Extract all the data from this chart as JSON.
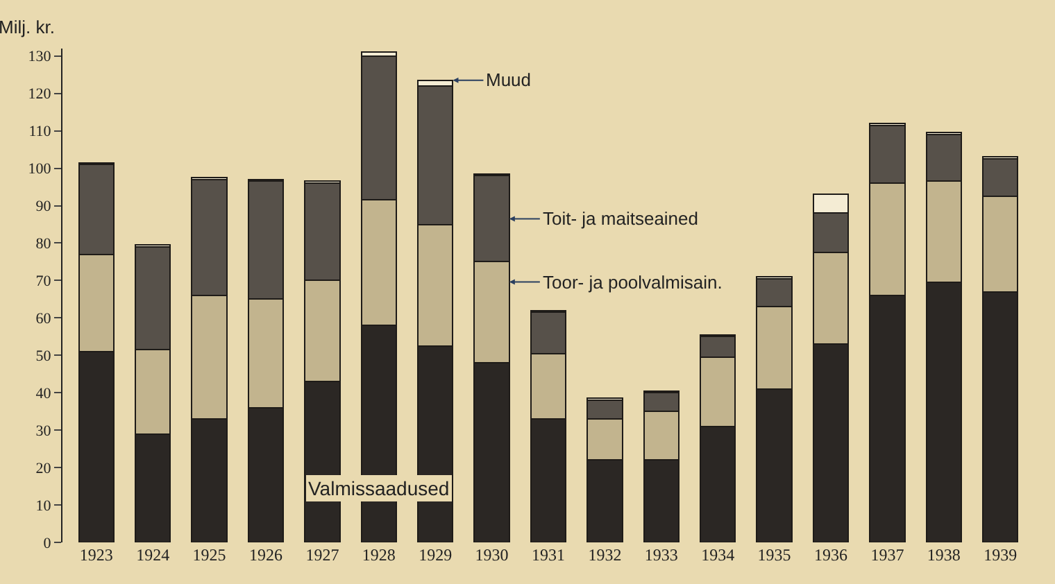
{
  "chart_data": {
    "type": "bar",
    "stacked": true,
    "ylabel": "Milj. kr.",
    "categories": [
      "1923",
      "1924",
      "1925",
      "1926",
      "1927",
      "1928",
      "1929",
      "1930",
      "1931",
      "1932",
      "1933",
      "1934",
      "1935",
      "1936",
      "1937",
      "1938",
      "1939"
    ],
    "series": [
      {
        "name": "Valmissaadused",
        "color": "#2b2724",
        "values": [
          51,
          29,
          33,
          36,
          43,
          58,
          52.5,
          48,
          33,
          22,
          22,
          31,
          41,
          53,
          66,
          69.5,
          67
        ]
      },
      {
        "name": "Toor- ja poolvalmisain.",
        "color": "#c2b48e",
        "values": [
          26,
          22.5,
          33,
          29,
          27,
          33.5,
          32.5,
          27,
          17.5,
          11,
          13,
          18.5,
          22,
          24.5,
          30,
          27,
          25.5
        ]
      },
      {
        "name": "Toit- ja maitseained",
        "color": "#57514a",
        "values": [
          24,
          27.5,
          31,
          31.5,
          26,
          38.5,
          37,
          23,
          11,
          5,
          5,
          5.5,
          7.5,
          10.5,
          15.5,
          12.5,
          10
        ]
      },
      {
        "name": "Muud",
        "color": "#f4ecd4",
        "values": [
          0.5,
          0.5,
          0.5,
          0.5,
          0.5,
          1,
          1.5,
          0.5,
          0.5,
          0.5,
          0.5,
          0.5,
          0.5,
          5,
          0.5,
          0.5,
          0.5
        ]
      }
    ],
    "ylim": [
      0,
      132
    ],
    "yticks": [
      0,
      10,
      20,
      30,
      40,
      50,
      60,
      70,
      80,
      90,
      100,
      110,
      120,
      130
    ],
    "grid": false,
    "legend": false
  }
}
